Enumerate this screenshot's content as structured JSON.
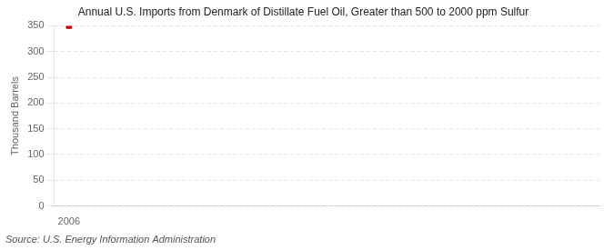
{
  "chart_data": {
    "type": "scatter",
    "title": "Annual U.S. Imports from Denmark of Distillate Fuel Oil, Greater than 500 to 2000 ppm Sulfur",
    "ylabel": "Thousand Barrels",
    "source": "Source: U.S. Energy Information Administration",
    "x": [
      2006
    ],
    "values": [
      350
    ],
    "color": "#cc0000",
    "marker": "square",
    "xlim": [
      2005.5,
      2024
    ],
    "xticks": [
      2006
    ],
    "ylim": [
      0,
      350
    ],
    "yticks": [
      0,
      50,
      100,
      150,
      200,
      250,
      300,
      350
    ],
    "grid": true
  }
}
